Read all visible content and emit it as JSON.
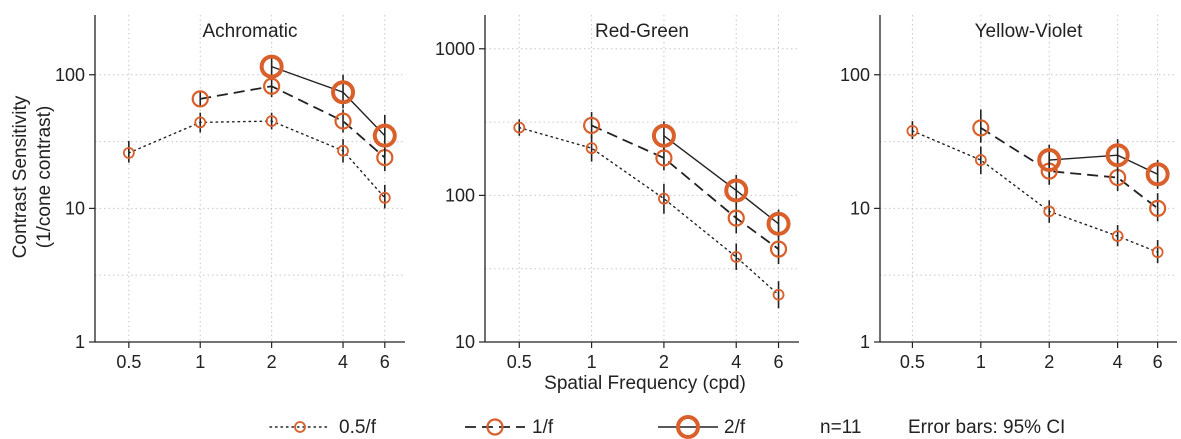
{
  "figure": {
    "xlabel": "Spatial Frequency (cpd)",
    "ylabel_line1": "Contrast Sensitivity",
    "ylabel_line2": "(1/cone contrast)",
    "marker_color": "#d95f2b"
  },
  "legend": {
    "entries": [
      {
        "key": "s05",
        "label": "0.5/f"
      },
      {
        "key": "s1",
        "label": "1/f"
      },
      {
        "key": "s2",
        "label": "2/f"
      }
    ],
    "n_text": "n=11",
    "error_text": "Error bars: 95% CI"
  },
  "chart_data": [
    {
      "type": "line",
      "title": "Achromatic",
      "xscale": "log",
      "yscale": "log",
      "x_ticks": [
        0.5,
        1,
        2,
        4,
        6
      ],
      "x_tick_labels": [
        "0.5",
        "1",
        "2",
        "4",
        "6"
      ],
      "y_ticks": [
        1,
        10,
        100
      ],
      "y_tick_labels": [
        "1",
        "10",
        "100"
      ],
      "xlim": [
        0.36,
        7.3
      ],
      "ylim": [
        1,
        280
      ],
      "grid": true,
      "series": [
        {
          "name": "0.5/f",
          "line_style": "dotted",
          "x": [
            0.5,
            1,
            2,
            4,
            6
          ],
          "y": [
            26,
            44,
            45,
            27,
            12
          ],
          "ci_low": [
            22,
            37,
            39,
            22,
            10
          ],
          "ci_high": [
            32,
            52,
            52,
            33,
            15
          ]
        },
        {
          "name": "1/f",
          "line_style": "dashed",
          "x": [
            1,
            2,
            4,
            6
          ],
          "y": [
            66,
            82,
            45,
            24
          ],
          "ci_low": [
            57,
            68,
            37,
            19
          ],
          "ci_high": [
            76,
            98,
            55,
            30
          ]
        },
        {
          "name": "2/f",
          "line_style": "solid",
          "x": [
            2,
            4,
            6
          ],
          "y": [
            115,
            74,
            35
          ],
          "ci_low": [
            95,
            56,
            25
          ],
          "ci_high": [
            140,
            100,
            50
          ]
        }
      ]
    },
    {
      "type": "line",
      "title": "Red-Green",
      "xscale": "log",
      "yscale": "log",
      "x_ticks": [
        0.5,
        1,
        2,
        4,
        6
      ],
      "x_tick_labels": [
        "0.5",
        "1",
        "2",
        "4",
        "6"
      ],
      "y_ticks": [
        10,
        100,
        1000
      ],
      "y_tick_labels": [
        "10",
        "100",
        "1000"
      ],
      "xlim": [
        0.36,
        7.3
      ],
      "ylim": [
        10,
        1700
      ],
      "grid": true,
      "series": [
        {
          "name": "0.5/f",
          "line_style": "dotted",
          "x": [
            0.5,
            1,
            2,
            4,
            6
          ],
          "y": [
            290,
            210,
            95,
            38,
            21
          ],
          "ci_low": [
            255,
            170,
            75,
            31,
            17
          ],
          "ci_high": [
            330,
            255,
            120,
            47,
            26
          ]
        },
        {
          "name": "1/f",
          "line_style": "dashed",
          "x": [
            1,
            2,
            4,
            6
          ],
          "y": [
            300,
            180,
            70,
            43
          ],
          "ci_low": [
            245,
            148,
            55,
            34
          ],
          "ci_high": [
            370,
            220,
            90,
            55
          ]
        },
        {
          "name": "2/f",
          "line_style": "solid",
          "x": [
            2,
            4,
            6
          ],
          "y": [
            255,
            108,
            64
          ],
          "ci_low": [
            205,
            85,
            52
          ],
          "ci_high": [
            320,
            138,
            80
          ]
        }
      ]
    },
    {
      "type": "line",
      "title": "Yellow-Violet",
      "xscale": "log",
      "yscale": "log",
      "x_ticks": [
        0.5,
        1,
        2,
        4,
        6
      ],
      "x_tick_labels": [
        "0.5",
        "1",
        "2",
        "4",
        "6"
      ],
      "y_ticks": [
        1,
        10,
        100
      ],
      "y_tick_labels": [
        "1",
        "10",
        "100"
      ],
      "xlim": [
        0.36,
        7.3
      ],
      "ylim": [
        1,
        280
      ],
      "grid": true,
      "series": [
        {
          "name": "0.5/f",
          "line_style": "dotted",
          "x": [
            0.5,
            1,
            2,
            4,
            6
          ],
          "y": [
            38,
            23,
            9.5,
            6.2,
            4.7
          ],
          "ci_low": [
            33,
            18,
            7.8,
            5.2,
            3.9
          ],
          "ci_high": [
            45,
            29,
            11.5,
            7.5,
            5.8
          ]
        },
        {
          "name": "1/f",
          "line_style": "dashed",
          "x": [
            1,
            2,
            4,
            6
          ],
          "y": [
            40,
            19,
            17,
            10
          ],
          "ci_low": [
            31,
            15,
            13.5,
            8
          ],
          "ci_high": [
            55,
            25,
            22,
            13
          ]
        },
        {
          "name": "2/f",
          "line_style": "solid",
          "x": [
            2,
            4,
            6
          ],
          "y": [
            23,
            25,
            18
          ],
          "ci_low": [
            17,
            19,
            14
          ],
          "ci_high": [
            30,
            33,
            23
          ]
        }
      ]
    }
  ]
}
